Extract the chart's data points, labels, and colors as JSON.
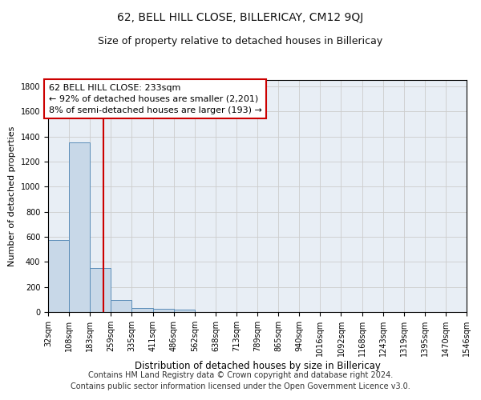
{
  "title": "62, BELL HILL CLOSE, BILLERICAY, CM12 9QJ",
  "subtitle": "Size of property relative to detached houses in Billericay",
  "xlabel": "Distribution of detached houses by size in Billericay",
  "ylabel": "Number of detached properties",
  "footer_line1": "Contains HM Land Registry data © Crown copyright and database right 2024.",
  "footer_line2": "Contains public sector information licensed under the Open Government Licence v3.0.",
  "bin_edges": [
    32,
    108,
    183,
    259,
    335,
    411,
    486,
    562,
    638,
    713,
    789,
    865,
    940,
    1016,
    1092,
    1168,
    1243,
    1319,
    1395,
    1470,
    1546
  ],
  "bar_heights": [
    575,
    1355,
    350,
    95,
    30,
    25,
    20,
    0,
    0,
    0,
    0,
    0,
    0,
    0,
    0,
    0,
    0,
    0,
    0,
    0
  ],
  "bar_facecolor": "#c8d8e8",
  "bar_edgecolor": "#5b8db8",
  "grid_color": "#cccccc",
  "background_color": "#e8eef5",
  "property_line_x": 233,
  "property_line_color": "#cc0000",
  "annotation_text": "62 BELL HILL CLOSE: 233sqm\n← 92% of detached houses are smaller (2,201)\n8% of semi-detached houses are larger (193) →",
  "annotation_box_color": "#cc0000",
  "ylim": [
    0,
    1850
  ],
  "title_fontsize": 10,
  "subtitle_fontsize": 9,
  "annotation_fontsize": 8,
  "xlabel_fontsize": 8.5,
  "ylabel_fontsize": 8,
  "footer_fontsize": 7,
  "tick_fontsize": 7
}
